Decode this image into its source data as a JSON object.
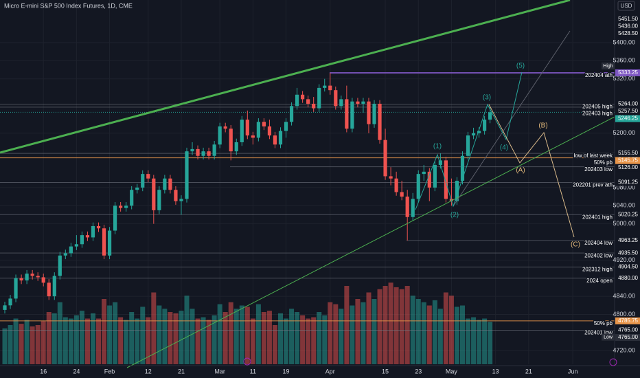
{
  "chart_data": {
    "type": "candlestick",
    "title": "Micro E-mini S&P 500 Index Futures, 1D, CME",
    "currency": "USD",
    "categories": [
      null,
      null,
      null,
      null,
      null,
      null,
      null,
      "16",
      null,
      null,
      null,
      null,
      null,
      "24",
      null,
      null,
      null,
      null,
      null,
      "Feb",
      null,
      null,
      null,
      null,
      null,
      null,
      "12",
      null,
      null,
      null,
      null,
      null,
      "21",
      null,
      null,
      null,
      null,
      null,
      null,
      "Mar",
      null,
      null,
      null,
      null,
      null,
      "11",
      null,
      null,
      null,
      null,
      null,
      "19",
      null,
      null,
      null,
      null,
      null,
      null,
      null,
      "Apr",
      null,
      null,
      null,
      null,
      null,
      null,
      null,
      null,
      null,
      "15",
      null,
      null,
      null,
      null,
      null,
      "23",
      null,
      null,
      null,
      null,
      null,
      "May",
      null,
      null,
      null,
      null,
      null,
      null,
      null,
      "13",
      null,
      null,
      null,
      null,
      null,
      "21",
      null,
      null,
      null,
      null,
      null,
      null,
      null,
      "Jun"
    ],
    "open": [
      4810,
      4820,
      4835,
      4880,
      4875,
      4890,
      4885,
      4882,
      4870,
      4840,
      4885,
      4930,
      4935,
      4950,
      4955,
      4975,
      4970,
      4995,
      4990,
      4930,
      4985,
      5040,
      5035,
      5040,
      5075,
      5080,
      5110,
      5100,
      5030,
      5075,
      5100,
      5075,
      5050,
      5055,
      5160,
      5165,
      5150,
      5160,
      5150,
      5175,
      5215,
      5210,
      5160,
      5180,
      5230,
      5195,
      5190,
      5225,
      5215,
      5195,
      5175,
      5205,
      5225,
      5260,
      5285,
      5275,
      5265,
      5255,
      5300,
      5305,
      5295,
      5260,
      5275,
      5210,
      5270,
      5265,
      5270,
      5220,
      5265,
      5185,
      5105,
      5100,
      5070,
      5060,
      5015,
      5055,
      5110,
      5115,
      5080,
      5130,
      5140,
      5055,
      5050,
      5095,
      5150,
      5195,
      5200,
      5205,
      5230,
      null,
      null,
      null,
      null,
      null,
      null,
      null,
      null,
      null,
      null,
      null,
      null,
      null,
      null,
      null
    ],
    "high": [
      4828,
      4843,
      4888,
      4888,
      4898,
      4898,
      4893,
      4890,
      4878,
      4893,
      4938,
      4943,
      4958,
      4975,
      4983,
      4983,
      5003,
      5003,
      4998,
      4993,
      5048,
      5048,
      5048,
      5083,
      5088,
      5118,
      5118,
      5108,
      5083,
      5108,
      5108,
      5083,
      5063,
      5168,
      5180,
      5173,
      5168,
      5168,
      5183,
      5223,
      5223,
      5218,
      5188,
      5238,
      5250,
      5203,
      5233,
      5233,
      5230,
      5203,
      5213,
      5233,
      5268,
      5300,
      5293,
      5283,
      5280,
      5308,
      5320,
      5333.25,
      5303,
      5283,
      5305,
      5278,
      5278,
      5278,
      5278,
      5273,
      5273,
      5210,
      5125,
      5115,
      5095,
      5075,
      5068,
      5118,
      5130,
      5123,
      5138,
      5155.5,
      5148,
      5100,
      5103,
      5160,
      5203,
      5212,
      5213,
      5238,
      5257.5,
      null,
      null,
      null,
      null,
      null,
      null,
      null,
      null,
      null,
      null,
      null,
      null,
      null,
      null,
      null
    ],
    "low": [
      4802,
      4812,
      4827,
      4867,
      4867,
      4877,
      4874,
      4862,
      4832,
      4832,
      4877,
      4922,
      4927,
      4942,
      4947,
      4962,
      4962,
      4982,
      4922,
      4922,
      4977,
      5027,
      5027,
      5032,
      5067,
      5072,
      5092,
      5000,
      5022,
      5067,
      5067,
      5042,
      5020,
      5047,
      5152,
      5142,
      5142,
      5142,
      5142,
      5167,
      5202,
      5140,
      5152,
      5172,
      5187,
      5175,
      5182,
      5207,
      5187,
      5167,
      5167,
      5190,
      5217,
      5252,
      5267,
      5257,
      5247,
      5247,
      5292,
      5285,
      5252,
      5252,
      5202,
      5202,
      5257,
      5245,
      5200,
      5212,
      5177,
      5097,
      5085,
      5062,
      5052,
      4963.25,
      5007,
      5047,
      5095,
      5050,
      5072,
      5122,
      5047,
      5040,
      5042,
      5087,
      5142,
      5187,
      5190,
      5197,
      5222,
      null,
      null,
      null,
      null,
      null,
      null,
      null,
      null,
      null,
      null,
      null,
      null,
      null,
      null,
      null
    ],
    "close": [
      4820,
      4835,
      4880,
      4875,
      4890,
      4885,
      4882,
      4870,
      4840,
      4885,
      4930,
      4935,
      4950,
      4955,
      4975,
      4970,
      4995,
      4990,
      4930,
      4985,
      5040,
      5035,
      5040,
      5075,
      5080,
      5110,
      5100,
      5030,
      5075,
      5100,
      5075,
      5050,
      5055,
      5160,
      5165,
      5150,
      5160,
      5150,
      5175,
      5215,
      5210,
      5160,
      5180,
      5230,
      5195,
      5190,
      5225,
      5215,
      5195,
      5175,
      5205,
      5225,
      5260,
      5285,
      5275,
      5265,
      5255,
      5300,
      5305,
      5295,
      5260,
      5275,
      5210,
      5270,
      5265,
      5270,
      5220,
      5265,
      5185,
      5105,
      5100,
      5070,
      5060,
      5015,
      5055,
      5110,
      5115,
      5080,
      5130,
      5140,
      5055,
      5050,
      5095,
      5150,
      5195,
      5200,
      5205,
      5230,
      5246.25,
      null,
      null,
      null,
      null,
      null,
      null,
      null,
      null,
      null,
      null,
      null,
      null,
      null,
      null,
      null
    ],
    "volume": [
      55,
      60,
      70,
      62,
      68,
      58,
      60,
      66,
      80,
      78,
      95,
      72,
      70,
      75,
      82,
      70,
      78,
      70,
      100,
      90,
      95,
      72,
      68,
      80,
      70,
      88,
      72,
      110,
      90,
      85,
      80,
      78,
      82,
      105,
      85,
      70,
      72,
      68,
      75,
      92,
      80,
      95,
      85,
      90,
      88,
      70,
      92,
      80,
      82,
      60,
      78,
      70,
      85,
      80,
      75,
      70,
      72,
      80,
      75,
      95,
      92,
      85,
      120,
      90,
      100,
      95,
      110,
      100,
      115,
      120,
      125,
      118,
      115,
      120,
      105,
      100,
      95,
      90,
      98,
      85,
      110,
      105,
      88,
      90,
      70,
      72,
      68,
      70,
      65,
      null,
      null,
      null,
      null,
      null,
      null,
      null,
      null,
      null,
      null,
      null,
      null,
      null,
      null,
      null
    ],
    "up_color": "#26a69a",
    "down_color": "#ef5350",
    "ylim": [
      4690,
      5494
    ],
    "yticks": [
      {
        "value": 5400,
        "label": "5400.00"
      },
      {
        "value": 5360,
        "label": "5360.00"
      },
      {
        "value": 5320,
        "label": "5320.00"
      },
      {
        "value": 5200,
        "label": "5200.00"
      },
      {
        "value": 5080,
        "label": "5080.00"
      },
      {
        "value": 5040,
        "label": "5040.00"
      },
      {
        "value": 5000,
        "label": "5000.00"
      },
      {
        "value": 4920,
        "label": "4920.00"
      },
      {
        "value": 4840,
        "label": "4840.00"
      },
      {
        "value": 4800,
        "label": "4800.00"
      },
      {
        "value": 4720,
        "label": "4720.00"
      }
    ],
    "levels": [
      {
        "price": 5451.5,
        "label": "5451.50"
      },
      {
        "price": 5436,
        "label": "5436.00"
      },
      {
        "price": 5428.5,
        "label": "5428.50"
      },
      {
        "price": 5333.25,
        "label": "5333.25",
        "name": "202404 ath",
        "tag": "High",
        "color": "#7e57c2"
      },
      {
        "price": 5264,
        "label": "5264.00",
        "name": "202405 high"
      },
      {
        "price": 5257.5,
        "label": "5257.50",
        "name": "202403 high"
      },
      {
        "price": 5246.25,
        "label": "5246.25",
        "color": "#26a69a"
      },
      {
        "price": 5155.5,
        "label": "5155.50",
        "name": "low of last week"
      },
      {
        "price": 5145.75,
        "label": "5145.75",
        "name": "50% pb",
        "color": "#e8954a"
      },
      {
        "price": 5126,
        "label": "5126.00",
        "name": "202403 low"
      },
      {
        "price": 5091.25,
        "label": "5091.25",
        "name": "202201 prev ath"
      },
      {
        "price": 5020.25,
        "label": "5020.25",
        "name": "202401 high"
      },
      {
        "price": 4963.25,
        "label": "4963.25",
        "name": "202404 low"
      },
      {
        "price": 4935.5,
        "label": "4935.50",
        "name": "202402 low"
      },
      {
        "price": 4904.5,
        "label": "4904.50",
        "name": "202312 high"
      },
      {
        "price": 4880,
        "label": "4880.00",
        "name": "2024 open"
      },
      {
        "price": 4785.75,
        "label": "4785.75",
        "name": "50% pb",
        "color": "#e8954a"
      },
      {
        "price": 4765,
        "label": "4765.00",
        "name": "202401 low"
      },
      {
        "price": 4765,
        "label": "4765.00",
        "tag": "Low"
      }
    ],
    "wave_labels": [
      "(1)",
      "(2)",
      "(3)",
      "(4)",
      "(5)",
      "(A)",
      "(B)",
      "(C)"
    ]
  }
}
